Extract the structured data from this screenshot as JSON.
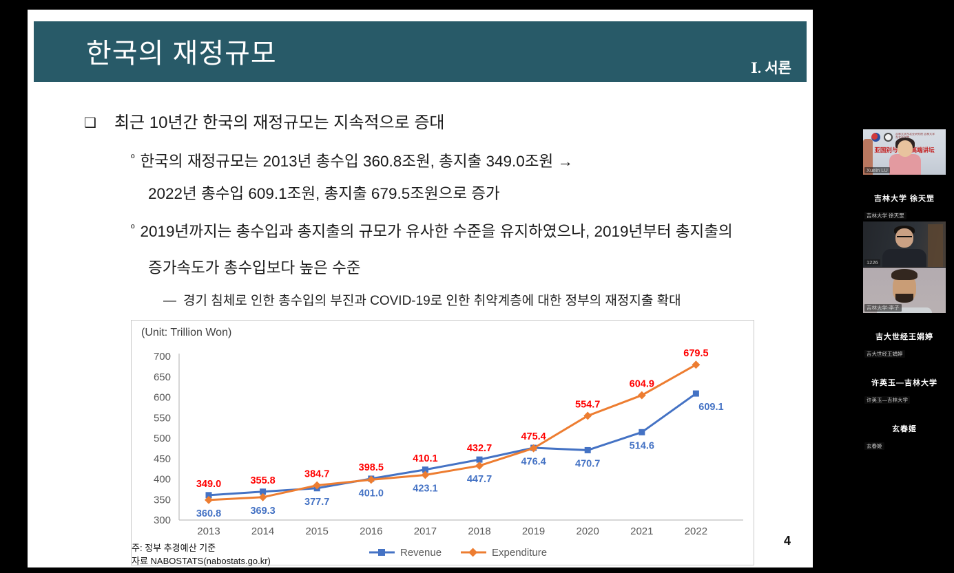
{
  "slide": {
    "header": {
      "title": "한국의 재정규모",
      "section": "Ⅰ. 서론"
    },
    "bullets": {
      "main_marker": "❑",
      "sub_marker": "º",
      "dash_marker": "—",
      "main": "최근 10년간 한국의 재정규모는 지속적으로 증대",
      "sub1_line1": "한국의 재정규모는 2013년 총수입 360.8조원, 총지출 349.0조원 →",
      "sub1_line2": "2022년 총수입 609.1조원, 총지출 679.5조원으로 증가",
      "sub2_line1": "2019년까지는 총수입과 총지출의 규모가 유사한 수준을 유지하였으나, 2019년부터 총지출의",
      "sub2_line2": "증가속도가 총수입보다 높은 수준",
      "dash": "경기 침체로 인한 총수입의 부진과 COVID-19로 인한 취약계층에 대한 정부의 재정지출 확대"
    },
    "notes": {
      "line1": "주: 정부 추경예산 기준",
      "line2": "자료 NABOSTATS(nabostats.go.kr)"
    },
    "page_number": "4"
  },
  "chart_data": {
    "type": "line",
    "title": "(Unit: Trillion Won)",
    "categories": [
      "2013",
      "2014",
      "2015",
      "2016",
      "2017",
      "2018",
      "2019",
      "2020",
      "2021",
      "2022"
    ],
    "series": [
      {
        "name": "Revenue",
        "color": "#4472C4",
        "label_color": "#4472C4",
        "marker": "square",
        "values": [
          360.8,
          369.3,
          377.7,
          401.0,
          423.1,
          447.7,
          476.4,
          470.7,
          514.6,
          609.1
        ]
      },
      {
        "name": "Expenditure",
        "color": "#ED7D31",
        "label_color": "#FF0000",
        "marker": "diamond",
        "values": [
          349.0,
          355.8,
          384.7,
          398.5,
          410.1,
          432.7,
          475.4,
          554.7,
          604.9,
          679.5
        ]
      }
    ],
    "ylim": [
      300,
      700
    ],
    "ytick_step": 50,
    "grid": false,
    "legend_position": "bottom"
  },
  "meeting_panel": {
    "banner_text": "亚国别与  研究高端讲坛",
    "participants": [
      {
        "type": "video",
        "scene": "banner",
        "label": "Xuein LU"
      },
      {
        "type": "name",
        "scene": "",
        "name": "吉林大学 徐天罡",
        "label": "吉林大学 徐天罡"
      },
      {
        "type": "video",
        "scene": "dark",
        "label": "1226"
      },
      {
        "type": "video",
        "scene": "portrait",
        "label": "吉林大学-李子"
      },
      {
        "type": "name",
        "scene": "",
        "name": "吉大世经王娟婷",
        "label": "吉大世经王娟婷"
      },
      {
        "type": "name",
        "scene": "",
        "name": "许英玉—吉林大学",
        "label": "许英玉—吉林大学"
      },
      {
        "type": "name",
        "scene": "",
        "name": "玄春姬",
        "label": "玄春姬"
      }
    ]
  },
  "colors": {
    "header_teal": "#285A68",
    "revenue_blue": "#4472C4",
    "expenditure_orange": "#ED7D31",
    "expenditure_label_red": "#FF0000",
    "axis_gray": "#BFBFBF",
    "tick_text_gray": "#595959"
  }
}
